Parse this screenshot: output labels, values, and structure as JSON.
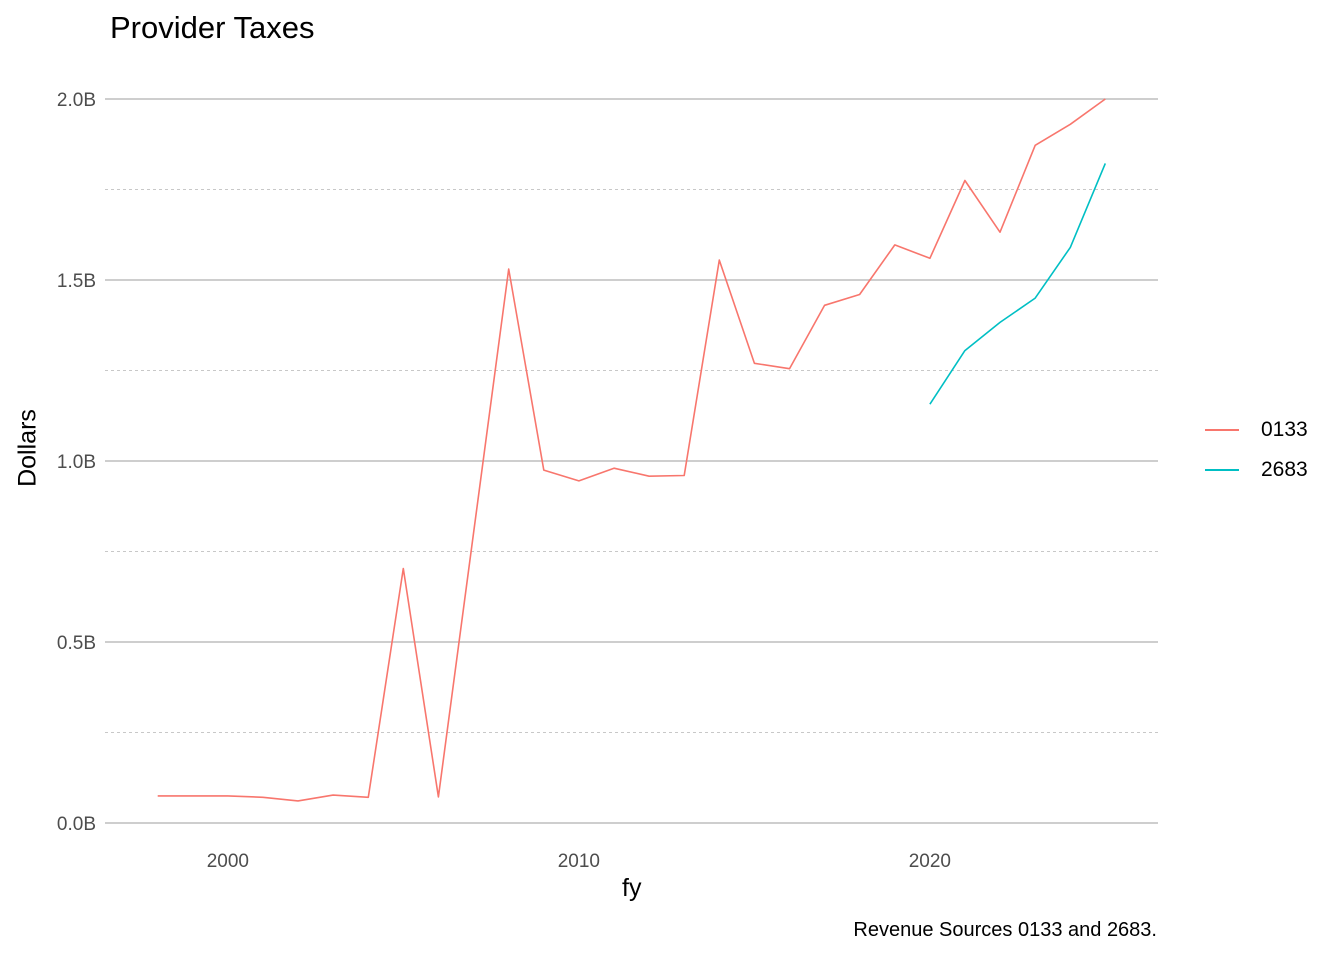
{
  "chart_data": {
    "type": "line",
    "title": "Provider Taxes",
    "xlabel": "fy",
    "ylabel": "Dollars",
    "caption": "Revenue Sources 0133 and 2683.",
    "xlim": [
      1996.5,
      2026.5
    ],
    "ylim": [
      0,
      2.0
    ],
    "x_ticks": [
      2000,
      2010,
      2020
    ],
    "x_tick_labels": [
      "2000",
      "2010",
      "2020"
    ],
    "y_ticks": [
      0,
      0.5,
      1.0,
      1.5,
      2.0
    ],
    "y_tick_labels": [
      "0.0B",
      "0.5B",
      "1.0B",
      "1.5B",
      "2.0B"
    ],
    "y_minor_ticks": [
      0.25,
      0.75,
      1.25,
      1.75
    ],
    "grid": true,
    "legend_position": "right",
    "series": [
      {
        "name": "0133",
        "color": "#F8766D",
        "x": [
          1998,
          1999,
          2000,
          2001,
          2002,
          2003,
          2004,
          2005,
          2006,
          2007,
          2008,
          2009,
          2010,
          2011,
          2012,
          2013,
          2014,
          2015,
          2016,
          2017,
          2018,
          2019,
          2020,
          2021,
          2022,
          2023,
          2024,
          2025
        ],
        "y": [
          0.075,
          0.075,
          0.075,
          0.071,
          0.061,
          0.077,
          0.071,
          0.703,
          0.072,
          0.8,
          1.53,
          0.975,
          0.945,
          0.98,
          0.958,
          0.96,
          1.555,
          1.27,
          1.255,
          1.43,
          1.46,
          1.597,
          1.56,
          1.775,
          1.632,
          1.872,
          1.93,
          2.0
        ]
      },
      {
        "name": "2683",
        "color": "#00BFC4",
        "x": [
          2020,
          2021,
          2022,
          2023,
          2024,
          2025
        ],
        "y": [
          1.157,
          1.305,
          1.383,
          1.45,
          1.59,
          1.822
        ]
      }
    ]
  }
}
